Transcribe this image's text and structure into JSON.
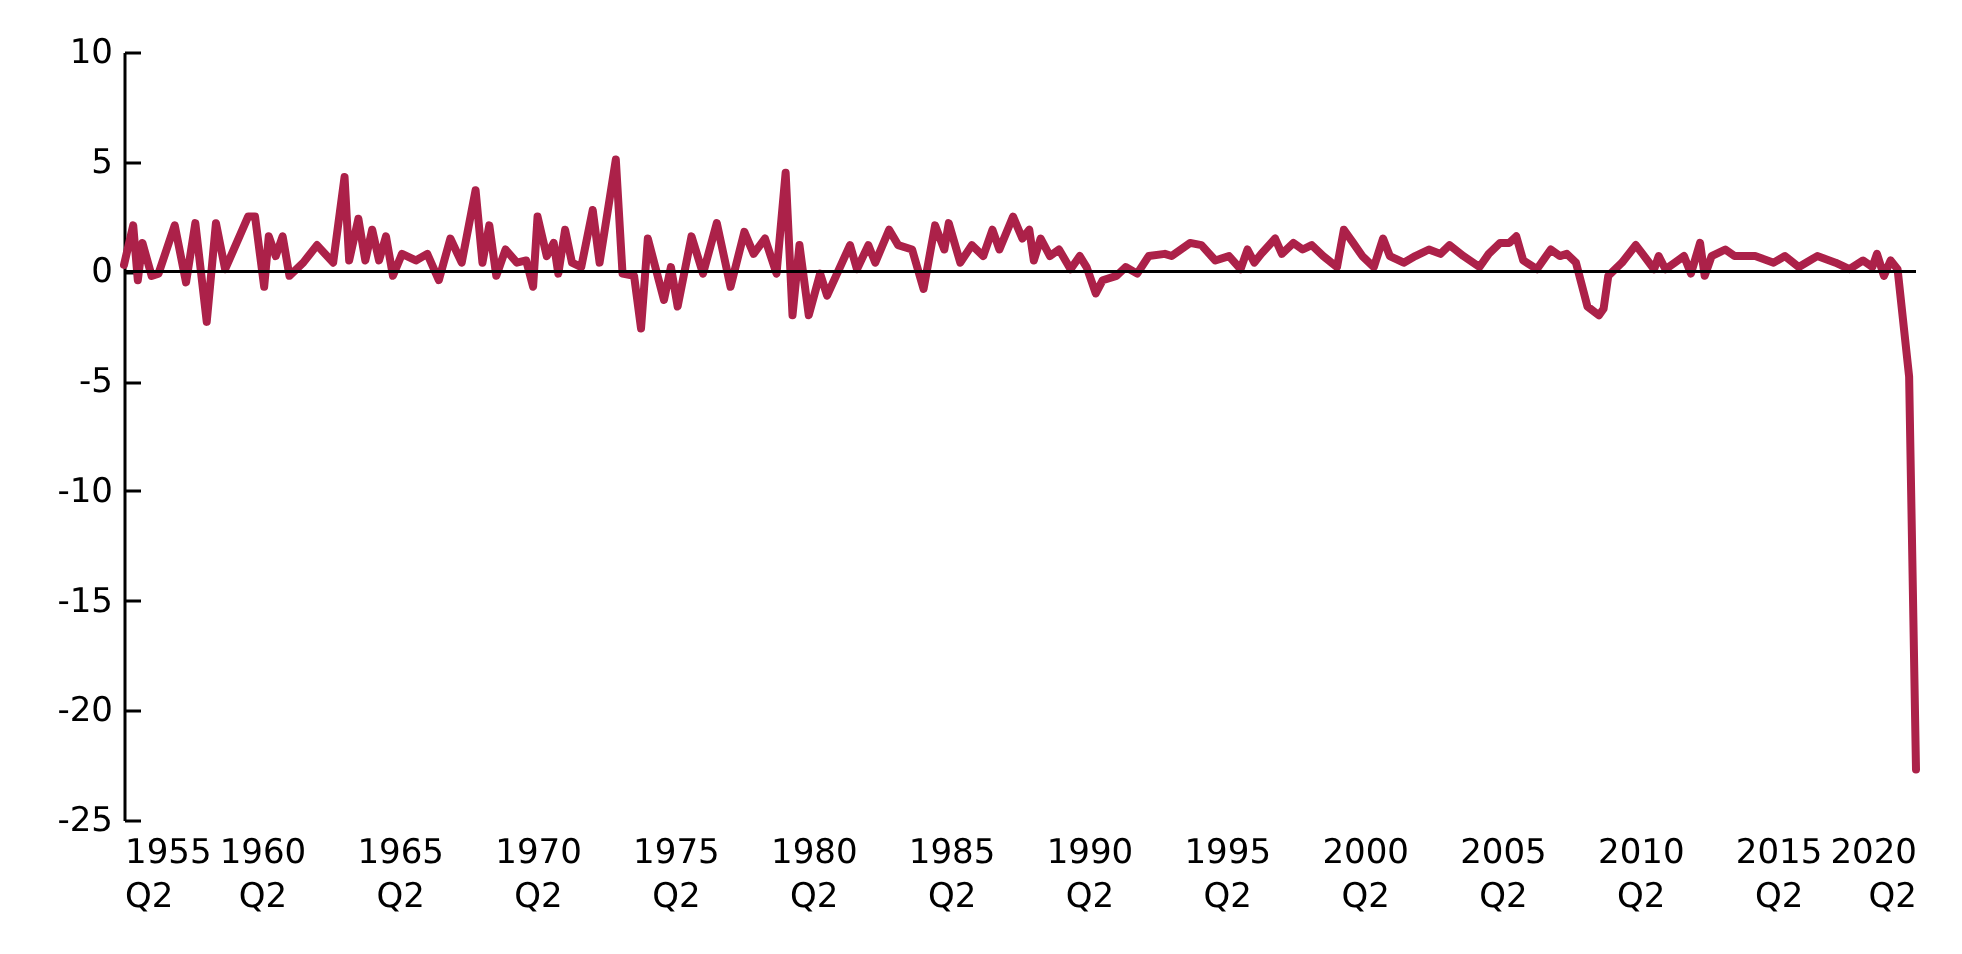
{
  "chart_data": {
    "type": "line",
    "xlim": [
      "1955-04",
      "2020-04"
    ],
    "ylim": [
      -25,
      10
    ],
    "xticks": [
      {
        "value": "1955-04",
        "label": "1955 Q2"
      },
      {
        "value": "1960-04",
        "label": "1960 Q2"
      },
      {
        "value": "1965-04",
        "label": "1965 Q2"
      },
      {
        "value": "1970-04",
        "label": "1970 Q2"
      },
      {
        "value": "1975-04",
        "label": "1975 Q2"
      },
      {
        "value": "1980-04",
        "label": "1980 Q2"
      },
      {
        "value": "1985-04",
        "label": "1985 Q2"
      },
      {
        "value": "1990-04",
        "label": "1990 Q2"
      },
      {
        "value": "1995-04",
        "label": "1995 Q2"
      },
      {
        "value": "2000-04",
        "label": "2000 Q2"
      },
      {
        "value": "2005-04",
        "label": "2005 Q2"
      },
      {
        "value": "2010-04",
        "label": "2010 Q2"
      },
      {
        "value": "2015-04",
        "label": "2015 Q2"
      },
      {
        "value": "2020-04",
        "label": "2020 Q2"
      }
    ],
    "yticks": [
      -25,
      -20,
      -15,
      -10,
      -5,
      0,
      5,
      10
    ],
    "grid": false,
    "marker": "none",
    "line_style": "solid",
    "ref_lines": [
      {
        "axis": "y",
        "value": 0,
        "color": "#000000"
      }
    ],
    "series": [
      {
        "color": "#ac2149",
        "x": [
          "1955-04",
          "1955-08",
          "1955-10",
          "1955-12",
          "1956-04",
          "1956-07",
          "1957-02",
          "1957-07",
          "1957-11",
          "1958-04",
          "1958-08",
          "1958-12",
          "1959-10",
          "1960-01",
          "1960-05",
          "1960-07",
          "1960-10",
          "1961-01",
          "1961-04",
          "1961-10",
          "1962-04",
          "1962-11",
          "1963-04",
          "1963-06",
          "1963-10",
          "1964-01",
          "1964-04",
          "1964-07",
          "1964-10",
          "1965-01",
          "1965-05",
          "1965-11",
          "1966-04",
          "1966-09",
          "1967-02",
          "1967-07",
          "1968-01",
          "1968-04",
          "1968-07",
          "1968-10",
          "1969-02",
          "1969-07",
          "1969-11",
          "1970-02",
          "1970-04",
          "1970-08",
          "1970-11",
          "1971-01",
          "1971-04",
          "1971-07",
          "1971-11",
          "1972-04",
          "1972-07",
          "1973-02",
          "1973-05",
          "1973-10",
          "1974-01",
          "1974-04",
          "1974-11",
          "1975-02",
          "1975-05",
          "1975-11",
          "1976-04",
          "1976-10",
          "1977-04",
          "1977-10",
          "1978-02",
          "1978-07",
          "1978-12",
          "1979-04",
          "1979-07",
          "1979-10",
          "1980-02",
          "1980-07",
          "1980-10",
          "1981-08",
          "1981-11",
          "1982-04",
          "1982-07",
          "1983-01",
          "1983-05",
          "1983-11",
          "1984-04",
          "1984-09",
          "1985-01",
          "1985-03",
          "1985-08",
          "1986-01",
          "1986-06",
          "1986-10",
          "1987-01",
          "1987-07",
          "1987-11",
          "1988-02",
          "1988-04",
          "1988-07",
          "1988-11",
          "1989-03",
          "1989-08",
          "1989-12",
          "1990-03",
          "1990-07",
          "1990-10",
          "1991-04",
          "1991-08",
          "1992-01",
          "1992-06",
          "1993-01",
          "1993-04",
          "1993-12",
          "1994-05",
          "1994-11",
          "1995-05",
          "1995-10",
          "1996-01",
          "1996-04",
          "1996-07",
          "1997-01",
          "1997-04",
          "1997-09",
          "1998-01",
          "1998-05",
          "1998-10",
          "1999-04",
          "1999-07",
          "1999-11",
          "2000-03",
          "2000-08",
          "2000-12",
          "2001-03",
          "2001-09",
          "2002-02",
          "2002-08",
          "2003-01",
          "2003-05",
          "2003-11",
          "2004-06",
          "2004-10",
          "2005-03",
          "2005-07",
          "2005-10",
          "2006-01",
          "2006-07",
          "2007-01",
          "2007-05",
          "2007-08",
          "2007-12",
          "2008-05",
          "2008-10",
          "2008-12",
          "2009-02",
          "2009-08",
          "2010-02",
          "2010-05",
          "2010-10",
          "2010-12",
          "2011-03",
          "2011-07",
          "2011-11",
          "2012-02",
          "2012-06",
          "2012-08",
          "2012-11",
          "2013-05",
          "2013-09",
          "2014-06",
          "2015-02",
          "2015-07",
          "2016-01",
          "2016-09",
          "2017-05",
          "2017-11",
          "2018-05",
          "2018-09",
          "2018-11",
          "2019-02",
          "2019-05",
          "2019-08",
          "2020-01",
          "2020-04"
        ],
        "values": [
          0.3,
          2.1,
          -0.4,
          1.3,
          -0.2,
          -0.1,
          2.1,
          -0.5,
          2.2,
          -2.3,
          2.2,
          0.1,
          2.5,
          2.5,
          -0.7,
          1.6,
          0.7,
          1.6,
          -0.2,
          0.4,
          1.2,
          0.4,
          4.3,
          0.5,
          2.4,
          0.5,
          1.9,
          0.5,
          1.6,
          -0.2,
          0.8,
          0.5,
          0.8,
          -0.4,
          1.5,
          0.4,
          3.7,
          0.4,
          2.1,
          -0.2,
          1.0,
          0.4,
          0.5,
          -0.7,
          2.5,
          0.7,
          1.3,
          -0.1,
          1.9,
          0.4,
          0.2,
          2.8,
          0.4,
          5.1,
          -0.1,
          -0.2,
          -2.6,
          1.5,
          -1.3,
          0.2,
          -1.6,
          1.6,
          -0.1,
          2.2,
          -0.7,
          1.8,
          0.8,
          1.5,
          -0.1,
          4.5,
          -2.0,
          1.2,
          -2.0,
          -0.1,
          -1.1,
          1.2,
          0.1,
          1.2,
          0.4,
          1.9,
          1.2,
          1.0,
          -0.8,
          2.1,
          1.0,
          2.2,
          0.4,
          1.2,
          0.7,
          1.9,
          1.0,
          2.5,
          1.5,
          1.9,
          0.5,
          1.5,
          0.7,
          1.0,
          0.1,
          0.7,
          0.2,
          -1.0,
          -0.4,
          -0.2,
          0.2,
          -0.1,
          0.7,
          0.8,
          0.7,
          1.3,
          1.2,
          0.5,
          0.7,
          0.1,
          1.0,
          0.4,
          0.8,
          1.5,
          0.8,
          1.3,
          1.0,
          1.2,
          0.7,
          0.2,
          1.9,
          1.3,
          0.7,
          0.2,
          1.5,
          0.7,
          0.4,
          0.7,
          1.0,
          0.8,
          1.2,
          0.7,
          0.2,
          0.8,
          1.3,
          1.3,
          1.6,
          0.5,
          0.1,
          1.0,
          0.7,
          0.8,
          0.4,
          -1.6,
          -2.0,
          -1.7,
          -0.2,
          0.4,
          1.2,
          0.8,
          0.1,
          0.7,
          0.1,
          0.4,
          0.7,
          -0.1,
          1.3,
          -0.2,
          0.7,
          1.0,
          0.7,
          0.7,
          0.4,
          0.7,
          0.2,
          0.7,
          0.4,
          0.1,
          0.5,
          0.2,
          0.8,
          -0.2,
          0.5,
          0.1,
          -4.8,
          -22.7
        ]
      }
    ]
  }
}
